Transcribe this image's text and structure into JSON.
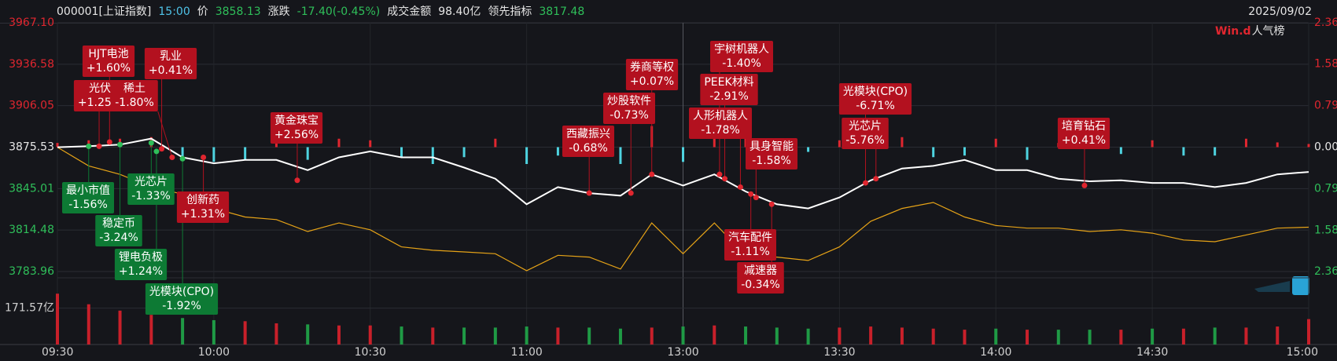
{
  "chart_data": {
    "type": "line",
    "header": {
      "items": [
        {
          "text": "000001[上证指数]",
          "color": "#e6e6e6"
        },
        {
          "text": "15:00",
          "color": "#4fc3e8"
        },
        {
          "text": "价",
          "color": "#e6e6e6"
        },
        {
          "text": "3858.13",
          "color": "#2fbf5a"
        },
        {
          "text": "涨跌",
          "color": "#e6e6e6"
        },
        {
          "text": "-17.40(-0.45%)",
          "color": "#2fbf5a"
        },
        {
          "text": "成交金额",
          "color": "#e6e6e6"
        },
        {
          "text": "98.40亿",
          "color": "#e6e6e6"
        },
        {
          "text": "领先指标",
          "color": "#e6e6e6"
        },
        {
          "text": "3817.48",
          "color": "#2fbf5a"
        }
      ],
      "date": "2025/09/02"
    },
    "logo": {
      "brand": "Win.d",
      "text": "人气榜"
    },
    "x": [
      0,
      6,
      12,
      18,
      24,
      30,
      36,
      42,
      48,
      54,
      60,
      66,
      72,
      78,
      84,
      90,
      96,
      102,
      108,
      114,
      120,
      126,
      132,
      138,
      144,
      150,
      156,
      162,
      168,
      174,
      180,
      186,
      192,
      198,
      204,
      210,
      216,
      222,
      228,
      234,
      240
    ],
    "xlim": [
      0,
      240
    ],
    "xticks": [
      {
        "value": 0,
        "label": "09:30"
      },
      {
        "value": 30,
        "label": "10:00"
      },
      {
        "value": 60,
        "label": "10:30"
      },
      {
        "value": 90,
        "label": "11:00"
      },
      {
        "value": 120,
        "label": "13:00"
      },
      {
        "value": 150,
        "label": "13:30"
      },
      {
        "value": 180,
        "label": "14:00"
      },
      {
        "value": 210,
        "label": "14:30"
      },
      {
        "value": 240,
        "label": "15:00"
      }
    ],
    "ylim": [
      3783.96,
      3967.1
    ],
    "yticks": [
      {
        "value": 3967.1,
        "label": "3967.10"
      },
      3936.58,
      3906.05,
      3875.53,
      3845.01,
      3814.48,
      3783.96
    ],
    "y2lim": [
      -2.36,
      2.36
    ],
    "y2ticks": [
      {
        "value": 2.36,
        "label": "2.36%"
      },
      {
        "value": 1.58,
        "label": "1.58%"
      },
      {
        "value": 0.79,
        "label": "0.79%"
      },
      {
        "value": 0,
        "label": "0.00%"
      },
      {
        "value": -0.79,
        "label": "0.79%"
      },
      {
        "value": -1.58,
        "label": "1.58%"
      },
      {
        "value": -2.36,
        "label": "2.36%"
      }
    ],
    "grid": true,
    "series": [
      {
        "type": "line",
        "color": "#ffffff",
        "values": [
          3875.5,
          3876.2,
          3877.4,
          3881.8,
          3868.0,
          3863.6,
          3866.1,
          3866.1,
          3858.6,
          3868.0,
          3872.4,
          3868.0,
          3868.0,
          3860.5,
          3852.3,
          3833.5,
          3846.1,
          3841.7,
          3839.8,
          3855.5,
          3847.3,
          3855.5,
          3842.9,
          3833.5,
          3830.4,
          3838.5,
          3851.1,
          3859.8,
          3861.7,
          3866.1,
          3858.6,
          3858.6,
          3852.3,
          3850.4,
          3851.1,
          3849.2,
          3849.2,
          3846.1,
          3849.2,
          3855.5,
          3857.3
        ]
      },
      {
        "type": "line",
        "color": "#e6a317",
        "values": [
          3875.5,
          3861.7,
          3855.5,
          3846.1,
          3841.0,
          3830.4,
          3824.1,
          3822.2,
          3813.4,
          3819.7,
          3814.7,
          3802.1,
          3799.6,
          3798.4,
          3797.1,
          3784.6,
          3795.9,
          3794.6,
          3785.8,
          3819.7,
          3797.1,
          3819.7,
          3795.9,
          3794.6,
          3792.1,
          3802.1,
          3821.0,
          3830.4,
          3834.8,
          3824.1,
          3817.8,
          3815.9,
          3815.9,
          3813.4,
          3814.7,
          3812.2,
          3807.2,
          3805.9,
          3810.9,
          3815.9,
          3816.6
        ]
      },
      {
        "type": "bar",
        "axis": "y2",
        "up_color": "#e0262f",
        "down_color": "#4ed3e0",
        "values": [
          0.08,
          0.13,
          0.16,
          0.19,
          -0.24,
          -0.28,
          -0.24,
          0.32,
          -0.24,
          0.16,
          0.13,
          -0.19,
          -0.32,
          -0.19,
          0.16,
          -0.32,
          -0.16,
          -0.13,
          -0.32,
          0.4,
          -0.28,
          0.32,
          0.24,
          -0.16,
          -0.09,
          0.13,
          0.24,
          0.19,
          -0.19,
          -0.16,
          0.16,
          -0.24,
          0.08,
          0.19,
          -0.13,
          0.13,
          -0.16,
          -0.16,
          0.16,
          0.09,
          0.06
        ]
      }
    ],
    "volume": {
      "ylim": [
        0,
        300
      ],
      "yticks": [
        {
          "value": 171.57,
          "label": "171.57亿"
        }
      ],
      "up_color": "#c8202a",
      "down_color": "#1f9a45",
      "values": [
        240,
        190,
        160,
        140,
        125,
        115,
        110,
        100,
        95,
        90,
        90,
        85,
        80,
        80,
        80,
        85,
        80,
        80,
        75,
        80,
        85,
        90,
        85,
        80,
        75,
        80,
        85,
        80,
        75,
        70,
        75,
        70,
        70,
        70,
        70,
        75,
        75,
        80,
        80,
        85,
        120
      ]
    },
    "annotations": [
      {
        "text": "光伏",
        "change": "+1.25%",
        "x": 8,
        "y": 3876.2,
        "color": "#b3111f"
      },
      {
        "text": "HJT电池",
        "change": "+1.60%",
        "x": 10,
        "y": 3879.3,
        "color": "#b3111f"
      },
      {
        "text": "乳业",
        "change": "+0.41%",
        "x": 20,
        "y": 3874.3,
        "color": "#b3111f"
      },
      {
        "text": "稀土",
        "change": "-1.80%",
        "x": 22,
        "y": 3868.0,
        "color": "#b3111f"
      },
      {
        "text": "最小市值",
        "change": "-1.56%",
        "x": 6,
        "y": 3876.2,
        "color": "#0d7a34"
      },
      {
        "text": "光芯片",
        "change": "-1.33%",
        "x": 18,
        "y": 3878.7,
        "color": "#0d7a34"
      },
      {
        "text": "稳定币",
        "change": "-3.24%",
        "x": 12,
        "y": 3877.4,
        "color": "#0d7a34"
      },
      {
        "text": "锂电负极",
        "change": "+1.24%",
        "x": 19,
        "y": 3872.4,
        "color": "#0d7a34"
      },
      {
        "text": "光模块(CPO)",
        "change": "-1.92%",
        "x": 24,
        "y": 3867.0,
        "color": "#0d7a34"
      },
      {
        "text": "创新药",
        "change": "+1.31%",
        "x": 28,
        "y": 3868.0,
        "color": "#b3111f"
      },
      {
        "text": "黄金珠宝",
        "change": "+2.56%",
        "x": 46,
        "y": 3851.1,
        "color": "#b3111f"
      },
      {
        "text": "西藏振兴",
        "change": "-0.68%",
        "x": 102,
        "y": 3841.7,
        "color": "#b3111f"
      },
      {
        "text": "炒股软件",
        "change": "-0.73%",
        "x": 110,
        "y": 3841.7,
        "color": "#b3111f"
      },
      {
        "text": "券商等权",
        "change": "+0.07%",
        "x": 114,
        "y": 3855.5,
        "color": "#b3111f"
      },
      {
        "text": "宇树机器人",
        "change": "-1.40%",
        "x": 127,
        "y": 3855.5,
        "color": "#b3111f"
      },
      {
        "text": "PEEK材料",
        "change": "-2.91%",
        "x": 128,
        "y": 3852.3,
        "color": "#b3111f"
      },
      {
        "text": "人形机器人",
        "change": "-1.78%",
        "x": 131,
        "y": 3846.1,
        "color": "#b3111f"
      },
      {
        "text": "具身智能",
        "change": "-1.58%",
        "x": 134,
        "y": 3838.5,
        "color": "#b3111f"
      },
      {
        "text": "汽车配件",
        "change": "-1.11%",
        "x": 133,
        "y": 3841.0,
        "color": "#b3111f"
      },
      {
        "text": "减速器",
        "change": "-0.34%",
        "x": 137,
        "y": 3833.5,
        "color": "#b3111f"
      },
      {
        "text": "光模块(CPO)",
        "change": "-6.71%",
        "x": 155,
        "y": 3849.2,
        "color": "#b3111f"
      },
      {
        "text": "光芯片",
        "change": "-5.76%",
        "x": 157,
        "y": 3852.3,
        "color": "#b3111f"
      },
      {
        "text": "培育钻石",
        "change": "+0.41%",
        "x": 197,
        "y": 3847.3,
        "color": "#b3111f"
      }
    ]
  }
}
